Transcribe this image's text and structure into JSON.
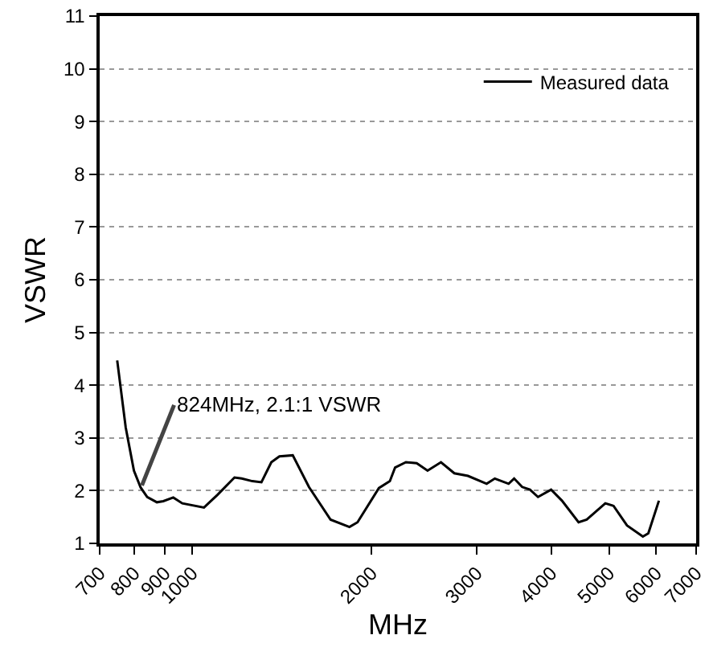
{
  "chart_data": {
    "type": "line",
    "xlabel": "MHz",
    "ylabel": "VSWR",
    "log": "x",
    "grid": "y",
    "legend": "top right",
    "marker": "none",
    "line_style": "solid",
    "xlim": [
      700,
      7000
    ],
    "xticks": [
      700,
      800,
      900,
      1000,
      2000,
      3000,
      4000,
      5000,
      6000,
      7000
    ],
    "ylim": [
      1,
      11
    ],
    "yticks": [
      1,
      2,
      3,
      4,
      5,
      6,
      7,
      8,
      9,
      10,
      11
    ],
    "annotations": [
      {
        "text": "824MHz, 2.1:1 VSWR",
        "x": 824,
        "y": 2.1
      }
    ],
    "series": [
      {
        "name": "Measured data",
        "color": "#000000",
        "x": [
          749,
          774,
          799,
          820,
          841,
          873,
          895,
          930,
          963,
          1047,
          1103,
          1178,
          1211,
          1262,
          1307,
          1358,
          1401,
          1475,
          1570,
          1707,
          1836,
          1894,
          2057,
          2146,
          2190,
          2283,
          2380,
          2482,
          2614,
          2752,
          2901,
          3118,
          3218,
          3394,
          3467,
          3576,
          3685,
          3802,
          3999,
          4170,
          4446,
          4588,
          4930,
          5090,
          5360,
          5699,
          5820,
          6063
        ],
        "values": [
          4.47,
          3.2,
          2.38,
          2.06,
          1.88,
          1.78,
          1.8,
          1.87,
          1.76,
          1.68,
          1.92,
          2.25,
          2.23,
          2.18,
          2.16,
          2.54,
          2.65,
          2.67,
          2.07,
          1.45,
          1.31,
          1.4,
          2.05,
          2.18,
          2.44,
          2.54,
          2.52,
          2.38,
          2.54,
          2.33,
          2.28,
          2.13,
          2.23,
          2.13,
          2.23,
          2.07,
          2.02,
          1.88,
          2.02,
          1.81,
          1.4,
          1.45,
          1.76,
          1.71,
          1.34,
          1.13,
          1.19,
          1.81
        ]
      }
    ]
  }
}
